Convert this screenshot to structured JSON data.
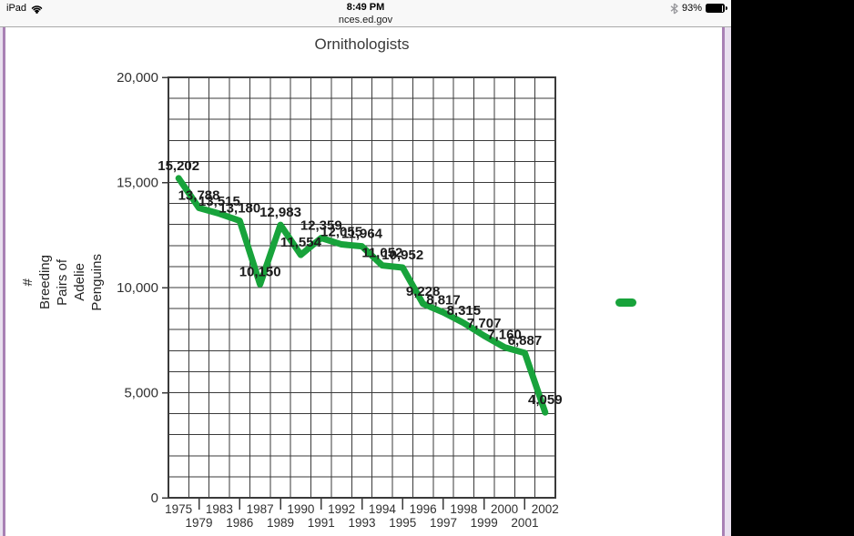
{
  "status_bar": {
    "device_label": "iPad",
    "time": "8:49 PM",
    "url": "nces.ed.gov",
    "battery_percent": "93%"
  },
  "chart_data": {
    "type": "line",
    "title": "Ornithologists",
    "ylabel_lines": [
      "#",
      "Breeding",
      "Pairs of",
      "Adelie",
      "Penguins"
    ],
    "xlabel": "",
    "categories": [
      "1975",
      "1979",
      "1983",
      "1986",
      "1987",
      "1989",
      "1990",
      "1991",
      "1992",
      "1993",
      "1994",
      "1995",
      "1996",
      "1997",
      "1998",
      "1999",
      "2000",
      "2001",
      "2002"
    ],
    "values": [
      15202,
      13788,
      13515,
      13180,
      10150,
      12983,
      11554,
      12359,
      12055,
      11964,
      11052,
      10952,
      9228,
      8817,
      8315,
      7707,
      7160,
      6887,
      4059
    ],
    "point_labels": [
      "15,202",
      "13,788",
      "13,515",
      "13,180",
      "10,150",
      "12,983",
      "11,554",
      "12,359",
      "12,055",
      "11,964",
      "11,052",
      "10,952",
      "9,228",
      "8,817",
      "8,315",
      "7,707",
      "7,160",
      "6,887",
      "4,059"
    ],
    "ylim": [
      0,
      20000
    ],
    "y_minor_interval": 1000,
    "ytick_values": [
      0,
      5000,
      10000,
      15000,
      20000
    ],
    "ytick_labels": [
      "0",
      "5,000",
      "10,000",
      "15,000",
      "20,000"
    ],
    "grid": true,
    "legend_position": "right"
  },
  "theme": {
    "series_green": "#18a33b",
    "grid_color": "#3a3a3a",
    "axis_text_color": "#303030",
    "data_label_color": "#1c1c1c",
    "status_bar_bg": "#f8f8f8",
    "page_edge_light": "#e9e0ef",
    "page_edge_dark": "#a981b5"
  }
}
